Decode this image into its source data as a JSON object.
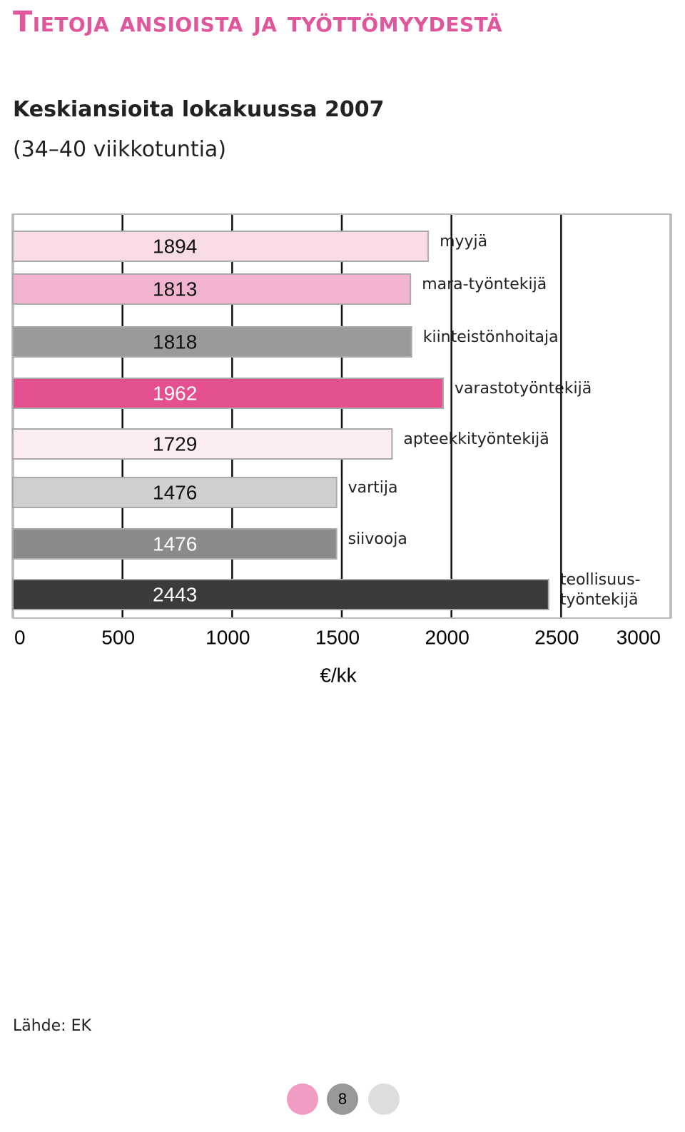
{
  "header": {
    "title": "Tietoja ansioista ja työttömyydestä"
  },
  "chart_data": {
    "type": "bar",
    "orientation": "horizontal",
    "title": "Keskiansioita lokakuussa 2007",
    "subtitle": "(34–40 viikkotuntia)",
    "categories": [
      "myyjä",
      "mara-työntekijä",
      "kiinteistönhoitaja",
      "varastotyöntekijä",
      "apteekkityöntekijä",
      "vartija",
      "siivooja",
      "teollisuus-\ntyöntekijä"
    ],
    "values": [
      1894,
      1813,
      1818,
      1962,
      1729,
      1476,
      1476,
      2443
    ],
    "colors": [
      "#f9dbe7",
      "#f1b3cf",
      "#9a9a9a",
      "#e44f8f",
      "#fcecf3",
      "#d0d0d0",
      "#8a8a8a",
      "#3b3b3b"
    ],
    "xlim": [
      0,
      3000
    ],
    "xticks": [
      0,
      500,
      1000,
      1500,
      2000,
      2500,
      3000
    ],
    "xlabel": "€/kk",
    "grid": true
  },
  "footer": {
    "source": "Lähde: EK",
    "page": 8
  }
}
